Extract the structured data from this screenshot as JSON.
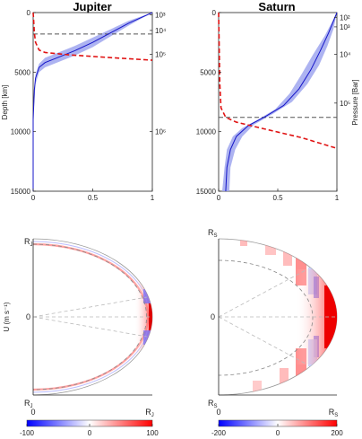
{
  "chart_data": [
    {
      "type": "line",
      "title": "Jupiter",
      "ylabel": "Depth [km]",
      "ylim": [
        15000,
        0
      ],
      "xlim": [
        0,
        1
      ],
      "x_ticks": [
        "0",
        "0.5",
        "1"
      ],
      "y_ticks": [
        "0",
        "5000",
        "10000",
        "15000"
      ],
      "right_ticks": [
        {
          "depth": 200,
          "label": "10³"
        },
        {
          "depth": 1500,
          "label": "10⁴"
        },
        {
          "depth": 3500,
          "label": "10⁵"
        },
        {
          "depth": 10000,
          "label": "10⁶"
        }
      ],
      "hline_depth": 1800,
      "series": [
        {
          "style": "blue-solid",
          "points": [
            [
              0,
              15000
            ],
            [
              0,
              9000
            ],
            [
              0.01,
              6500
            ],
            [
              0.02,
              5500
            ],
            [
              0.05,
              4600
            ],
            [
              0.1,
              4200
            ],
            [
              0.2,
              3800
            ],
            [
              0.35,
              3200
            ],
            [
              0.5,
              2500
            ],
            [
              0.65,
              1700
            ],
            [
              0.8,
              900
            ],
            [
              0.9,
              450
            ],
            [
              1,
              0
            ]
          ]
        },
        {
          "style": "red-dashed",
          "points": [
            [
              0,
              0
            ],
            [
              0.005,
              800
            ],
            [
              0.01,
              1700
            ],
            [
              0.02,
              2500
            ],
            [
              0.05,
              3150
            ],
            [
              0.1,
              3350
            ],
            [
              0.3,
              3550
            ],
            [
              0.6,
              3750
            ],
            [
              1,
              4000
            ]
          ]
        }
      ],
      "band": {
        "upper": [
          [
            0,
            9000
          ],
          [
            0.02,
            6000
          ],
          [
            0.05,
            5000
          ],
          [
            0.1,
            4600
          ],
          [
            0.2,
            4200
          ],
          [
            0.35,
            3600
          ],
          [
            0.5,
            2900
          ],
          [
            0.65,
            2000
          ],
          [
            0.8,
            1100
          ],
          [
            0.9,
            550
          ],
          [
            1,
            0
          ]
        ],
        "lower": [
          [
            0,
            8000
          ],
          [
            0.02,
            5200
          ],
          [
            0.05,
            4300
          ],
          [
            0.1,
            3800
          ],
          [
            0.2,
            3400
          ],
          [
            0.35,
            2800
          ],
          [
            0.5,
            2100
          ],
          [
            0.65,
            1400
          ],
          [
            0.8,
            700
          ],
          [
            0.9,
            350
          ],
          [
            1,
            0
          ]
        ]
      }
    },
    {
      "type": "line",
      "title": "Saturn",
      "ylabel": "Pressure [Bar]",
      "ylim": [
        15000,
        0
      ],
      "xlim": [
        0,
        1
      ],
      "x_ticks": [
        "0",
        "0.5",
        "1"
      ],
      "y_ticks": [
        "0",
        "5000",
        "10000",
        "15000"
      ],
      "right_ticks": [
        {
          "depth": 400,
          "label": "10²"
        },
        {
          "depth": 1200,
          "label": "10³"
        },
        {
          "depth": 3500,
          "label": "10⁴"
        },
        {
          "depth": 7600,
          "label": "10⁵"
        }
      ],
      "hline_depth": 8800,
      "series": [
        {
          "style": "blue-solid",
          "points": [
            [
              0.06,
              15000
            ],
            [
              0.07,
              13000
            ],
            [
              0.1,
              11500
            ],
            [
              0.15,
              10400
            ],
            [
              0.25,
              9500
            ],
            [
              0.4,
              8700
            ],
            [
              0.55,
              7800
            ],
            [
              0.68,
              6400
            ],
            [
              0.78,
              4800
            ],
            [
              0.86,
              3200
            ],
            [
              0.93,
              1700
            ],
            [
              1,
              0
            ]
          ]
        },
        {
          "style": "red-dashed",
          "points": [
            [
              0,
              0
            ],
            [
              0.005,
              3000
            ],
            [
              0.01,
              6000
            ],
            [
              0.02,
              8000
            ],
            [
              0.06,
              8800
            ],
            [
              0.15,
              9200
            ],
            [
              0.4,
              9800
            ],
            [
              0.7,
              10500
            ],
            [
              1,
              11400
            ]
          ]
        }
      ],
      "band": {
        "upper": [
          [
            0.03,
            15000
          ],
          [
            0.05,
            13000
          ],
          [
            0.07,
            11500
          ],
          [
            0.12,
            10400
          ],
          [
            0.2,
            9700
          ],
          [
            0.33,
            9000
          ],
          [
            0.48,
            8100
          ],
          [
            0.6,
            6800
          ],
          [
            0.7,
            5200
          ],
          [
            0.8,
            3500
          ],
          [
            0.9,
            1900
          ],
          [
            1,
            0
          ]
        ],
        "lower": [
          [
            0.09,
            15000
          ],
          [
            0.1,
            13000
          ],
          [
            0.14,
            11500
          ],
          [
            0.2,
            10400
          ],
          [
            0.3,
            9400
          ],
          [
            0.46,
            8500
          ],
          [
            0.62,
            7500
          ],
          [
            0.75,
            6000
          ],
          [
            0.85,
            4400
          ],
          [
            0.92,
            2800
          ],
          [
            0.97,
            1400
          ],
          [
            1,
            0
          ]
        ]
      }
    },
    {
      "type": "heatmap",
      "ylabel": "U (m s⁻¹)",
      "colorbar": {
        "min": -100,
        "max": 100,
        "ticks": [
          "-100",
          "0",
          "100"
        ]
      },
      "labels": {
        "top": [
          "R",
          "J"
        ],
        "mid": "0",
        "bottom": [
          "R",
          "J"
        ],
        "x_left": "0",
        "x_right": [
          "R",
          "J"
        ]
      }
    },
    {
      "type": "heatmap",
      "colorbar": {
        "min": -200,
        "max": 200,
        "ticks": [
          "-200",
          "0",
          "200"
        ]
      },
      "labels": {
        "top": [
          "R",
          "S"
        ],
        "mid": "0",
        "bottom": [
          "R",
          "S"
        ],
        "x_left": "0",
        "x_right": [
          "R",
          "S"
        ]
      }
    }
  ],
  "colors": {
    "blue": "#1515c8",
    "band": "#9fa6ee",
    "red": "#e01212",
    "dash": "#555555"
  }
}
